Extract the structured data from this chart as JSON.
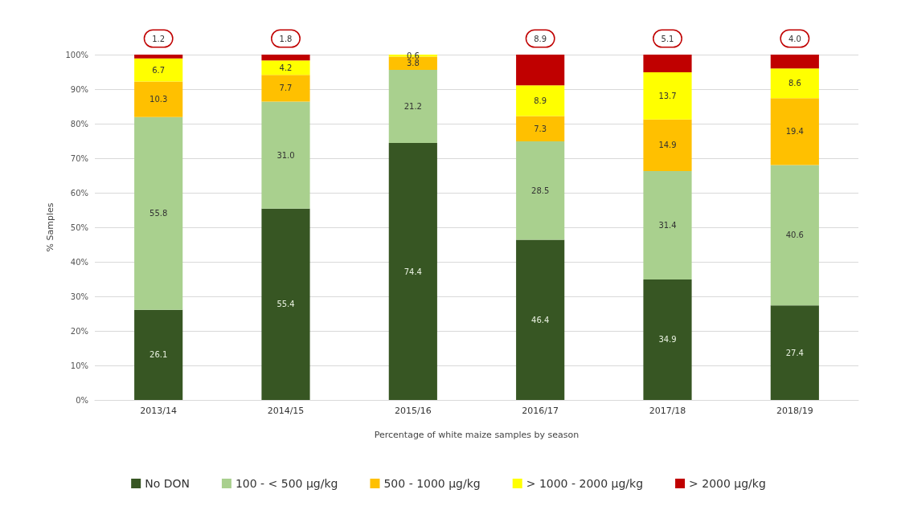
{
  "chart_data": {
    "type": "bar",
    "stacked": true,
    "xlabel": "Percentage of white maize samples by season",
    "ylabel": "% Samples",
    "categories": [
      "2013/14",
      "2014/15",
      "2015/16",
      "2016/17",
      "2017/18",
      "2018/19"
    ],
    "series": [
      {
        "name": "No DON",
        "color": "#375623",
        "values": [
          26.1,
          55.4,
          74.4,
          46.4,
          34.9,
          27.4
        ],
        "value_labels": [
          "26.1",
          "55.4",
          "74.4",
          "46.4",
          "34.9",
          "27.4"
        ]
      },
      {
        "name": "100 - < 500 µg/kg",
        "color": "#a9d08e",
        "values": [
          55.8,
          31.0,
          21.2,
          28.5,
          31.4,
          40.6
        ],
        "value_labels": [
          "55.8",
          "31.0",
          "21.2",
          "28.5",
          "31.4",
          "40.6"
        ]
      },
      {
        "name": "500 - 1000 µg/kg",
        "color": "#ffc000",
        "values": [
          10.3,
          7.7,
          3.8,
          7.3,
          14.9,
          19.4
        ],
        "value_labels": [
          "10.3",
          "7.7",
          "3.8",
          "7.3",
          "14.9",
          "19.4"
        ]
      },
      {
        "name": "> 1000 - 2000 µg/kg",
        "color": "#ffff00",
        "values": [
          6.7,
          4.2,
          0.6,
          8.9,
          13.7,
          8.6
        ],
        "value_labels": [
          "6.7",
          "4.2",
          "0.6",
          "8.9",
          "13.7",
          "8.6"
        ]
      },
      {
        "name": "> 2000 µg/kg",
        "color": "#c00000",
        "values": [
          1.2,
          1.8,
          null,
          8.9,
          5.1,
          4.0
        ],
        "value_labels": [
          "1.2",
          "1.8",
          null,
          "8.9",
          "5.1",
          "4.0"
        ]
      }
    ],
    "ylim": [
      0,
      100
    ],
    "yticks": [
      {
        "value": 0,
        "label": "0%"
      },
      {
        "value": 10,
        "label": "10%"
      },
      {
        "value": 20,
        "label": "20%"
      },
      {
        "value": 30,
        "label": "30%"
      },
      {
        "value": 40,
        "label": "40%"
      },
      {
        "value": 50,
        "label": "50%"
      },
      {
        "value": 60,
        "label": "60%"
      },
      {
        "value": 70,
        "label": "70%"
      },
      {
        "value": 80,
        "label": "80%"
      },
      {
        "value": 90,
        "label": "90%"
      },
      {
        "value": 100,
        "label": "100%"
      }
    ],
    "grid": "y",
    "legend": "bottom"
  }
}
